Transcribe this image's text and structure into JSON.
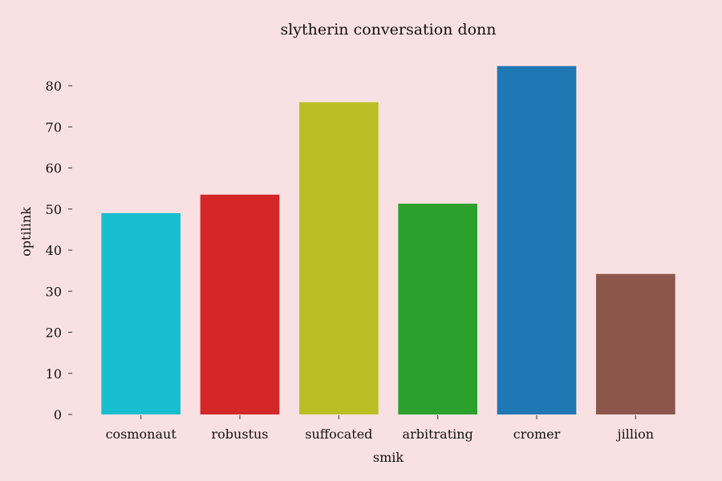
{
  "chart_data": {
    "type": "bar",
    "title": "slytherin conversation donn",
    "xlabel": "smik",
    "ylabel": "optilink",
    "categories": [
      "cosmonaut",
      "robustus",
      "suffocated",
      "arbitrating",
      "cromer",
      "jillion"
    ],
    "values": [
      49,
      53.5,
      76,
      51.3,
      84.8,
      34.2
    ],
    "colors": [
      "#17becf",
      "#d62728",
      "#bcbd22",
      "#2ca02c",
      "#1f77b4",
      "#8c564b"
    ],
    "ylim": [
      0,
      85
    ],
    "yticks": [
      0,
      10,
      20,
      30,
      40,
      50,
      60,
      70,
      80
    ],
    "grid": false,
    "background": "#f9e1e3"
  }
}
